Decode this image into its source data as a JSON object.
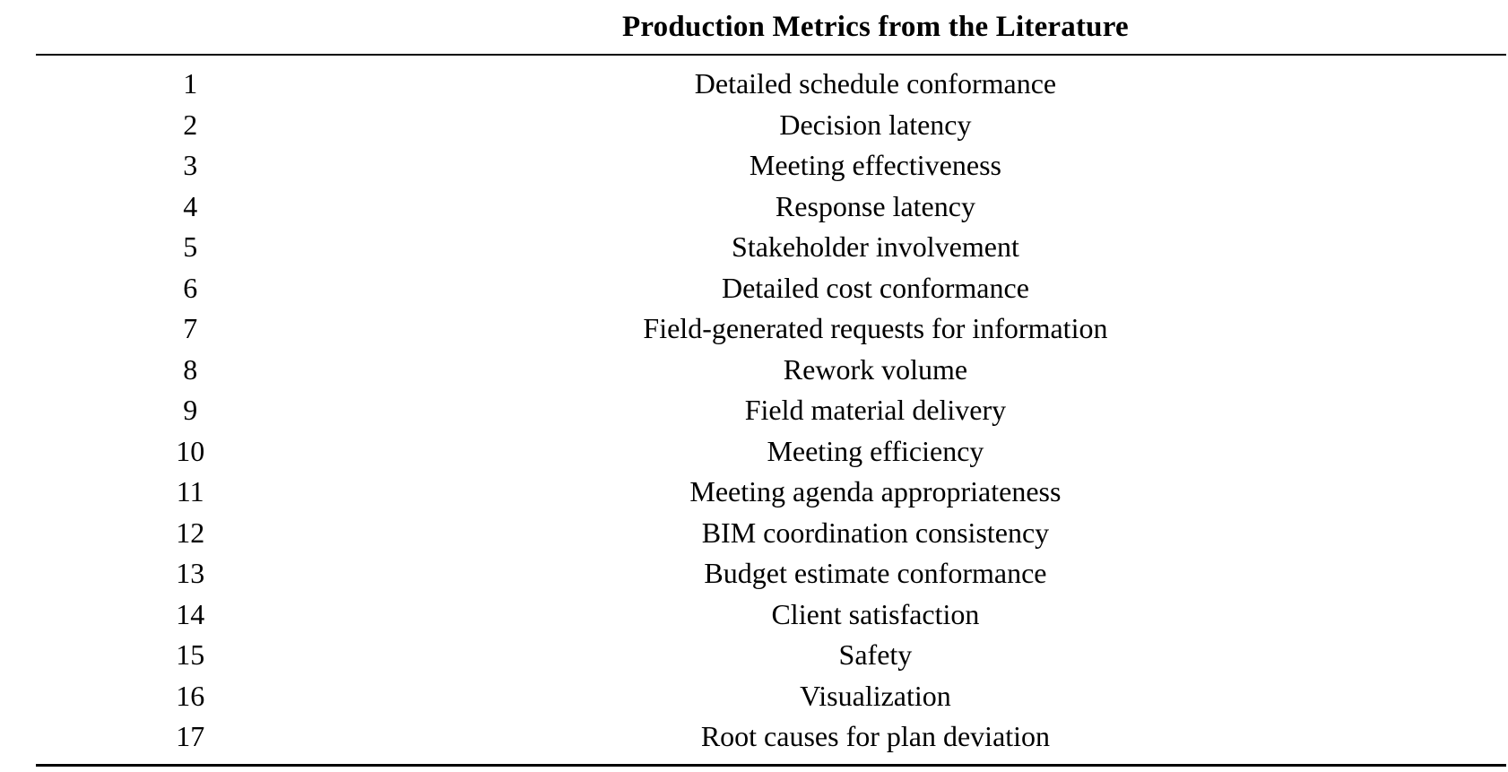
{
  "page": {
    "background": "#ffffff",
    "text_color": "#000000",
    "rule_color": "#000000"
  },
  "table": {
    "title": "Production Metrics from the Literature",
    "rows": [
      {
        "num": "1",
        "metric": "Detailed schedule conformance"
      },
      {
        "num": "2",
        "metric": "Decision latency"
      },
      {
        "num": "3",
        "metric": "Meeting effectiveness"
      },
      {
        "num": "4",
        "metric": "Response latency"
      },
      {
        "num": "5",
        "metric": "Stakeholder involvement"
      },
      {
        "num": "6",
        "metric": "Detailed cost conformance"
      },
      {
        "num": "7",
        "metric": "Field-generated requests for information"
      },
      {
        "num": "8",
        "metric": "Rework volume"
      },
      {
        "num": "9",
        "metric": "Field material delivery"
      },
      {
        "num": "10",
        "metric": "Meeting efficiency"
      },
      {
        "num": "11",
        "metric": "Meeting agenda appropriateness"
      },
      {
        "num": "12",
        "metric": "BIM coordination consistency"
      },
      {
        "num": "13",
        "metric": "Budget estimate conformance"
      },
      {
        "num": "14",
        "metric": "Client satisfaction"
      },
      {
        "num": "15",
        "metric": "Safety"
      },
      {
        "num": "16",
        "metric": "Visualization"
      },
      {
        "num": "17",
        "metric": "Root causes for plan deviation"
      }
    ]
  }
}
